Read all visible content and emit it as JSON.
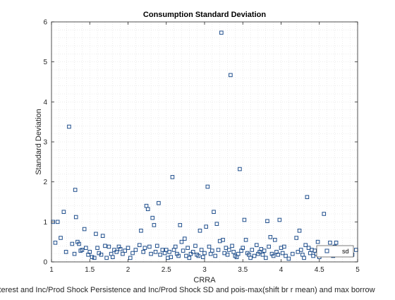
{
  "chart_data": {
    "type": "scatter",
    "title": "Consumption Standard Deviation",
    "xlabel": "CRRA",
    "xlabel2": "ave Interest and Inc/Prod Shock Persistence and Inc/Prod Shock SD and pois-max(shift br r mean) and max borrow",
    "ylabel": "Standard Deviation",
    "xlim": [
      1,
      5
    ],
    "ylim": [
      0,
      6
    ],
    "xticks": [
      1,
      1.5,
      2,
      2.5,
      3,
      3.5,
      4,
      4.5,
      5
    ],
    "xtick_labels": [
      "1",
      "1.5",
      "2",
      "2.5",
      "3",
      "3.5",
      "4",
      "4.5",
      "5"
    ],
    "yticks": [
      0,
      1,
      2,
      3,
      4,
      5,
      6
    ],
    "ytick_labels": [
      "0",
      "1",
      "2",
      "3",
      "4",
      "5",
      "6"
    ],
    "grid": "minor-dotted",
    "legend_position": "bottom-right",
    "marker_color": "#1f4e8c",
    "series": [
      {
        "name": "sd",
        "points": [
          [
            1.02,
            1.0
          ],
          [
            1.05,
            0.48
          ],
          [
            1.08,
            1.0
          ],
          [
            1.12,
            0.6
          ],
          [
            1.16,
            1.25
          ],
          [
            1.19,
            0.25
          ],
          [
            1.23,
            3.38
          ],
          [
            1.27,
            0.45
          ],
          [
            1.3,
            0.2
          ],
          [
            1.31,
            1.8
          ],
          [
            1.32,
            1.12
          ],
          [
            1.34,
            0.5
          ],
          [
            1.36,
            0.45
          ],
          [
            1.38,
            0.28
          ],
          [
            1.4,
            0.3
          ],
          [
            1.43,
            0.82
          ],
          [
            1.45,
            0.35
          ],
          [
            1.48,
            0.18
          ],
          [
            1.5,
            0.25
          ],
          [
            1.53,
            0.12
          ],
          [
            1.56,
            0.1
          ],
          [
            1.58,
            0.7
          ],
          [
            1.6,
            0.35
          ],
          [
            1.62,
            0.22
          ],
          [
            1.65,
            0.18
          ],
          [
            1.67,
            0.65
          ],
          [
            1.7,
            0.4
          ],
          [
            1.72,
            0.1
          ],
          [
            1.75,
            0.38
          ],
          [
            1.78,
            0.2
          ],
          [
            1.8,
            0.12
          ],
          [
            1.82,
            0.3
          ],
          [
            1.85,
            0.25
          ],
          [
            1.88,
            0.38
          ],
          [
            1.9,
            0.32
          ],
          [
            1.93,
            0.2
          ],
          [
            1.96,
            0.28
          ],
          [
            2.0,
            0.35
          ],
          [
            2.03,
            0.1
          ],
          [
            2.06,
            0.22
          ],
          [
            2.1,
            0.3
          ],
          [
            2.15,
            0.42
          ],
          [
            2.17,
            0.78
          ],
          [
            2.2,
            0.25
          ],
          [
            2.22,
            0.35
          ],
          [
            2.24,
            1.4
          ],
          [
            2.26,
            1.32
          ],
          [
            2.28,
            0.38
          ],
          [
            2.3,
            0.2
          ],
          [
            2.32,
            1.1
          ],
          [
            2.34,
            0.92
          ],
          [
            2.36,
            0.25
          ],
          [
            2.38,
            0.4
          ],
          [
            2.4,
            1.47
          ],
          [
            2.42,
            0.18
          ],
          [
            2.45,
            0.3
          ],
          [
            2.48,
            0.22
          ],
          [
            2.5,
            0.3
          ],
          [
            2.52,
            0.1
          ],
          [
            2.54,
            0.25
          ],
          [
            2.56,
            0.12
          ],
          [
            2.58,
            2.12
          ],
          [
            2.6,
            0.3
          ],
          [
            2.62,
            0.38
          ],
          [
            2.64,
            0.2
          ],
          [
            2.66,
            0.15
          ],
          [
            2.68,
            0.92
          ],
          [
            2.7,
            0.5
          ],
          [
            2.72,
            0.28
          ],
          [
            2.74,
            0.58
          ],
          [
            2.76,
            0.15
          ],
          [
            2.78,
            0.35
          ],
          [
            2.8,
            0.1
          ],
          [
            2.82,
            0.2
          ],
          [
            2.85,
            0.25
          ],
          [
            2.88,
            0.4
          ],
          [
            2.9,
            0.18
          ],
          [
            2.92,
            0.15
          ],
          [
            2.94,
            0.78
          ],
          [
            2.96,
            0.3
          ],
          [
            2.98,
            0.12
          ],
          [
            3.0,
            0.22
          ],
          [
            3.02,
            0.88
          ],
          [
            3.04,
            1.88
          ],
          [
            3.06,
            0.38
          ],
          [
            3.08,
            0.2
          ],
          [
            3.1,
            0.28
          ],
          [
            3.12,
            1.25
          ],
          [
            3.14,
            0.15
          ],
          [
            3.16,
            0.95
          ],
          [
            3.18,
            0.3
          ],
          [
            3.2,
            0.52
          ],
          [
            3.22,
            5.73
          ],
          [
            3.24,
            0.55
          ],
          [
            3.26,
            0.22
          ],
          [
            3.28,
            0.35
          ],
          [
            3.3,
            0.18
          ],
          [
            3.32,
            0.3
          ],
          [
            3.34,
            4.67
          ],
          [
            3.36,
            0.4
          ],
          [
            3.38,
            0.25
          ],
          [
            3.4,
            0.15
          ],
          [
            3.42,
            0.12
          ],
          [
            3.44,
            0.2
          ],
          [
            3.46,
            2.32
          ],
          [
            3.48,
            0.28
          ],
          [
            3.5,
            0.35
          ],
          [
            3.52,
            1.05
          ],
          [
            3.54,
            0.55
          ],
          [
            3.56,
            0.22
          ],
          [
            3.58,
            0.18
          ],
          [
            3.6,
            0.1
          ],
          [
            3.62,
            0.3
          ],
          [
            3.65,
            0.15
          ],
          [
            3.68,
            0.42
          ],
          [
            3.7,
            0.2
          ],
          [
            3.72,
            0.25
          ],
          [
            3.74,
            0.32
          ],
          [
            3.76,
            0.18
          ],
          [
            3.78,
            0.28
          ],
          [
            3.8,
            0.1
          ],
          [
            3.82,
            1.02
          ],
          [
            3.84,
            0.38
          ],
          [
            3.86,
            0.62
          ],
          [
            3.88,
            0.2
          ],
          [
            3.9,
            0.15
          ],
          [
            3.92,
            0.55
          ],
          [
            3.94,
            0.25
          ],
          [
            3.96,
            0.18
          ],
          [
            3.98,
            1.05
          ],
          [
            4.0,
            0.35
          ],
          [
            4.02,
            0.22
          ],
          [
            4.04,
            0.38
          ],
          [
            4.06,
            0.15
          ],
          [
            4.1,
            0.08
          ],
          [
            4.15,
            0.2
          ],
          [
            4.2,
            0.6
          ],
          [
            4.22,
            0.25
          ],
          [
            4.24,
            0.78
          ],
          [
            4.26,
            0.3
          ],
          [
            4.28,
            0.18
          ],
          [
            4.3,
            0.1
          ],
          [
            4.32,
            0.42
          ],
          [
            4.34,
            1.62
          ],
          [
            4.36,
            0.35
          ],
          [
            4.38,
            0.22
          ],
          [
            4.4,
            0.3
          ],
          [
            4.42,
            0.15
          ],
          [
            4.44,
            0.28
          ],
          [
            4.46,
            0.2
          ],
          [
            4.48,
            0.5
          ],
          [
            4.5,
            0.12
          ],
          [
            4.52,
            0.35
          ],
          [
            4.54,
            0.25
          ],
          [
            4.56,
            1.2
          ],
          [
            4.58,
            0.18
          ],
          [
            4.6,
            0.3
          ],
          [
            4.62,
            0.22
          ],
          [
            4.64,
            0.48
          ],
          [
            4.66,
            0.28
          ],
          [
            4.68,
            0.15
          ],
          [
            4.7,
            0.38
          ],
          [
            4.72,
            0.48
          ],
          [
            4.75,
            0.25
          ],
          [
            4.8,
            0.3
          ],
          [
            4.88,
            0.2
          ],
          [
            4.93,
            0.18
          ],
          [
            4.98,
            0.3
          ]
        ]
      }
    ]
  }
}
